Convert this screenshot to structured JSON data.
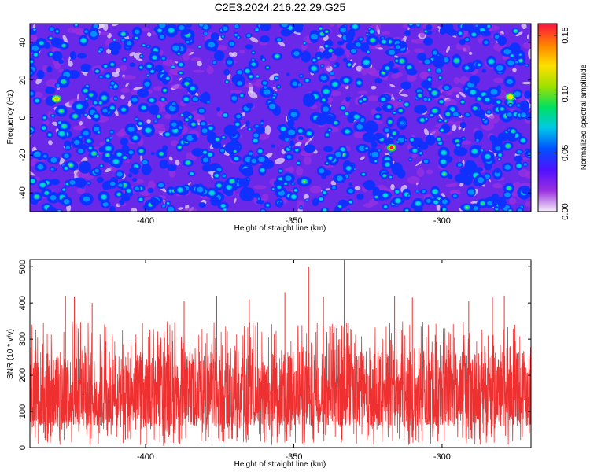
{
  "title": "C2E3.2024.216.22.29.G25",
  "chart_data": [
    {
      "type": "heatmap",
      "xlabel": "Height of straight line (km)",
      "ylabel": "Frequency (Hz)",
      "xlim": [
        -439,
        -270
      ],
      "ylim": [
        -50,
        50
      ],
      "xticks": [
        -400,
        -350,
        -300
      ],
      "xtick_labels": [
        "-400",
        "-350",
        "-300"
      ],
      "yticks": [
        -40,
        -20,
        0,
        20,
        40
      ],
      "ytick_labels": [
        "-40",
        "-20",
        "0",
        "20",
        "40"
      ],
      "colorbar": {
        "label": "Normalized spectral amplitude",
        "range": [
          0,
          0.16
        ],
        "ticks": [
          0,
          0.05,
          0.1,
          0.15
        ],
        "tick_labels": [
          "0.00",
          "0.05",
          "0.10",
          "0.15"
        ],
        "colormap": [
          "#f4eef8",
          "#9b30e0",
          "#5010ff",
          "#0050ff",
          "#00c8e8",
          "#00e060",
          "#a0e000",
          "#ffe000",
          "#ff8000",
          "#ff1040"
        ]
      },
      "peaks": [
        {
          "x": -317,
          "y": -16,
          "value": 0.16
        },
        {
          "x": -277,
          "y": 11,
          "value": 0.13
        },
        {
          "x": -430,
          "y": 10,
          "value": 0.11
        }
      ]
    },
    {
      "type": "line",
      "xlabel": "Height of straight line (km)",
      "ylabel": "SNR (10 * v/v)",
      "xlim": [
        -439,
        -270
      ],
      "ylim": [
        0,
        520
      ],
      "xticks": [
        -400,
        -350,
        -300
      ],
      "xtick_labels": [
        "-400",
        "-350",
        "-300"
      ],
      "yticks": [
        0,
        100,
        200,
        300,
        400,
        500
      ],
      "ytick_labels": [
        "0",
        "100",
        "200",
        "300",
        "400",
        "500"
      ],
      "color": "#ee3030",
      "baseline_mean": 140,
      "typical_band": [
        60,
        270
      ],
      "spikes": [
        {
          "x": -427,
          "y": 420
        },
        {
          "x": -424,
          "y": 418
        },
        {
          "x": -418,
          "y": 400
        },
        {
          "x": -387,
          "y": 405
        },
        {
          "x": -376,
          "y": 420
        },
        {
          "x": -365,
          "y": 410
        },
        {
          "x": -353,
          "y": 430
        },
        {
          "x": -345,
          "y": 500
        },
        {
          "x": -340,
          "y": 418
        },
        {
          "x": -333,
          "y": 520
        },
        {
          "x": -316,
          "y": 420
        },
        {
          "x": -310,
          "y": 415
        },
        {
          "x": -291,
          "y": 405
        },
        {
          "x": -283,
          "y": 415
        },
        {
          "x": -279,
          "y": 420
        }
      ]
    }
  ]
}
